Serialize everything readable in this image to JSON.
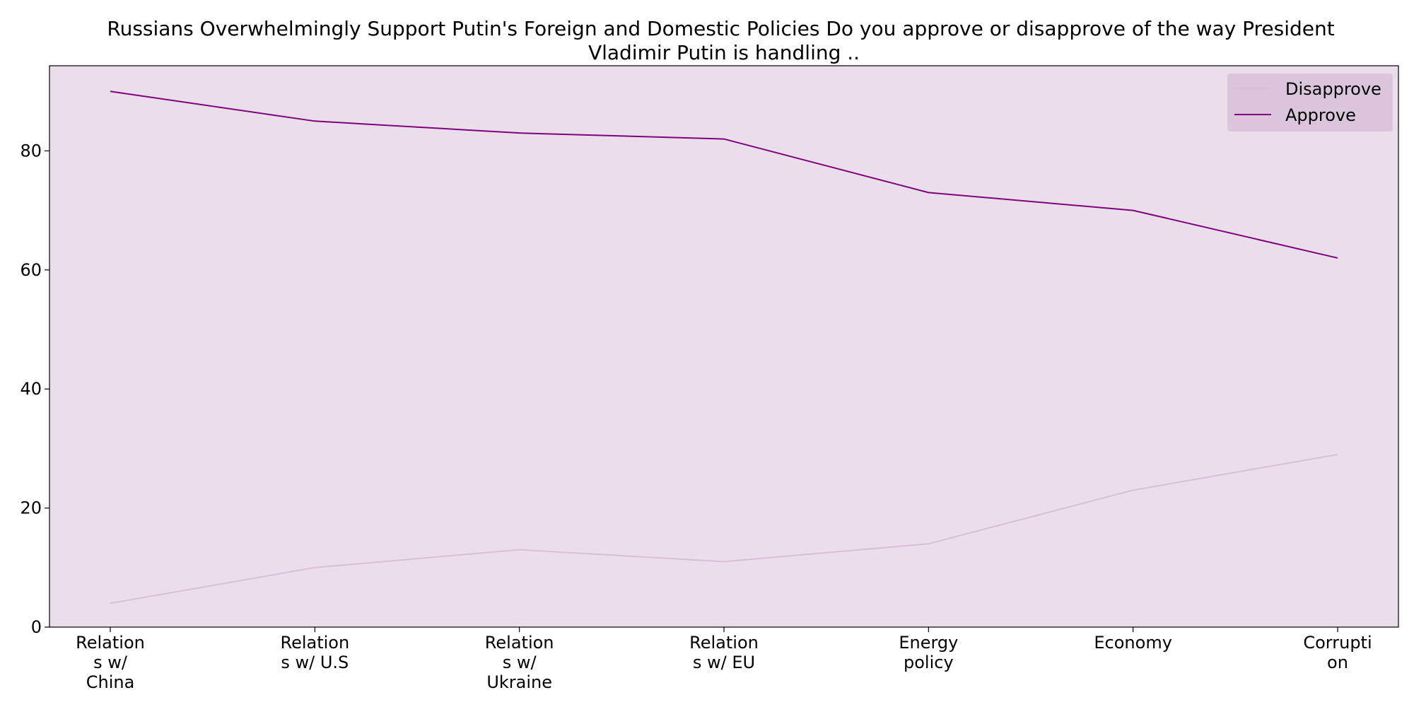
{
  "chart_data": {
    "type": "line",
    "title": "Russians Overwhelmingly Support Putin's Foreign and Domestic Policies Do you approve or disapprove of the way President Vladimir Putin is handling ..",
    "title_lines": [
      "Russians Overwhelmingly Support Putin's Foreign and Domestic Policies Do you approve or disapprove of the way President",
      "Vladimir Putin is handling .."
    ],
    "xlabel": "",
    "ylabel": "",
    "categories": [
      "Relations w/ China",
      "Relations w/ U.S",
      "Relations w/ Ukraine",
      "Relations w/ EU",
      "Energy policy",
      "Economy",
      "Corruption"
    ],
    "category_label_lines": [
      [
        "Relation",
        "s w/",
        "China"
      ],
      [
        "Relation",
        "s w/ U.S"
      ],
      [
        "Relation",
        "s w/",
        "Ukraine"
      ],
      [
        "Relation",
        "s w/ EU"
      ],
      [
        "Energy",
        "policy"
      ],
      [
        "Economy"
      ],
      [
        "Corrupti",
        "on"
      ]
    ],
    "series": [
      {
        "name": "Disapprove",
        "values": [
          4,
          10,
          13,
          11,
          14,
          23,
          29
        ],
        "color": "#d8bfd8"
      },
      {
        "name": "Approve",
        "values": [
          90,
          85,
          83,
          82,
          73,
          70,
          62
        ],
        "color": "#800080"
      }
    ],
    "ylim": [
      0,
      94.3
    ],
    "yticks": [
      0,
      20,
      40,
      60,
      80
    ],
    "grid": false,
    "legend_position": "top-right",
    "plot_background": "#eadeeb",
    "legend_background": "#dbc5dc"
  }
}
